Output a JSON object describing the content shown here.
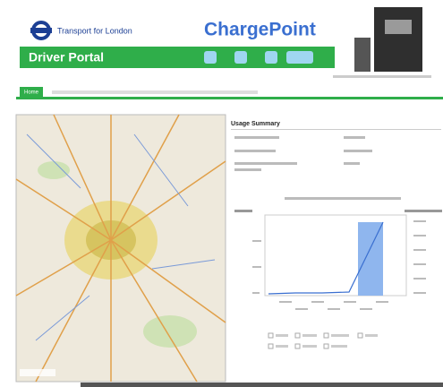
{
  "header": {
    "org": "Transport for London",
    "brand": "ChargePoint",
    "portal": "Driver Portal"
  },
  "nav": {
    "tab": "Home"
  },
  "summary": {
    "title": "Usage Summary"
  }
}
